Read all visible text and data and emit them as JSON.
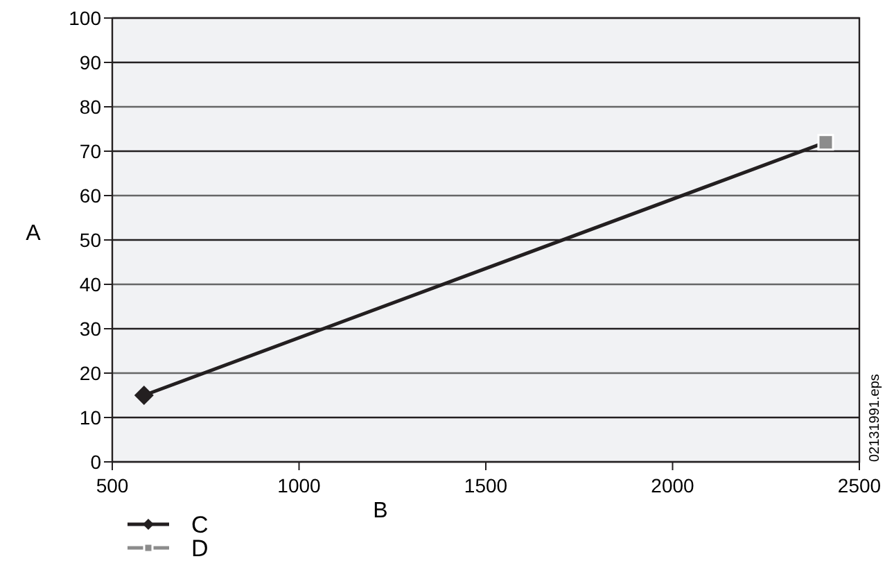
{
  "chart_data": {
    "type": "line",
    "xlabel": "B",
    "ylabel": "A",
    "xlim": [
      500,
      2500
    ],
    "xticks": [
      500,
      1000,
      1500,
      2000,
      2500
    ],
    "ylim": [
      0,
      100
    ],
    "yticks": [
      0,
      10,
      20,
      30,
      40,
      50,
      60,
      70,
      80,
      90,
      100
    ],
    "x": [
      585,
      2410
    ],
    "grid": "y",
    "legend": "bottom",
    "line_style": "solid",
    "series": [
      {
        "color": "#231f20",
        "values": [
          15,
          72
        ],
        "marker": "none"
      },
      {
        "type": "scatter",
        "name": "C",
        "color": "#231f20",
        "values": [
          15,
          null
        ],
        "marker": "diamond"
      },
      {
        "type": "scatter",
        "name": "D",
        "color": "#8c8c8c",
        "values": [
          null,
          72
        ],
        "marker": "square"
      }
    ],
    "annotations": [
      "02131991.eps"
    ]
  }
}
